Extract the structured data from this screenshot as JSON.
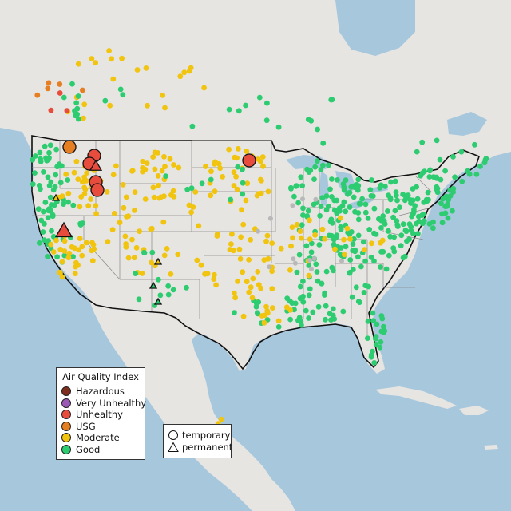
{
  "map": {
    "legend": {
      "title": "Air Quality Index",
      "categories": [
        {
          "label": "Hazardous",
          "color": "#7e2e1e"
        },
        {
          "label": "Very Unhealthy",
          "color": "#9b59b6"
        },
        {
          "label": "Unhealthy",
          "color": "#e74c3c"
        },
        {
          "label": "USG",
          "color": "#e67e22"
        },
        {
          "label": "Moderate",
          "color": "#f1c40f"
        },
        {
          "label": "Good",
          "color": "#2ecc71"
        }
      ]
    },
    "monitor_types": [
      {
        "label": "temporary",
        "icon": "circle-icon"
      },
      {
        "label": "permanent",
        "icon": "triangle-icon"
      }
    ],
    "colors": {
      "water": "#a7c7dd",
      "land": "#e6e5e2",
      "us_land": "#ececea",
      "state_border": "#8a8a8a",
      "national_border": "#111111",
      "no_data": "#b8b8b8"
    }
  }
}
